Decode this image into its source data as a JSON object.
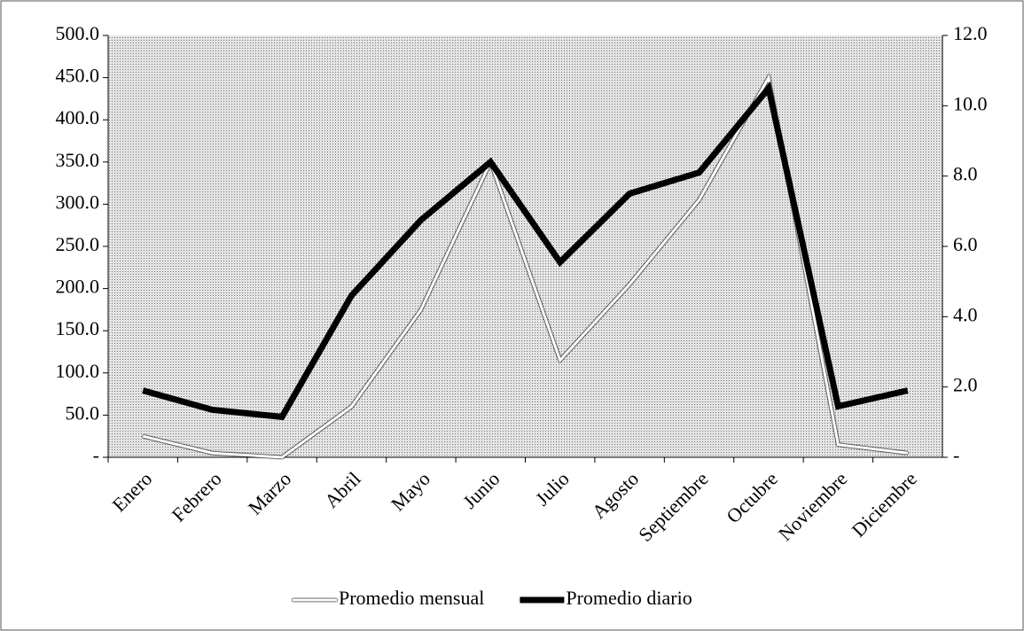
{
  "chart_data": {
    "type": "line",
    "categories": [
      "Enero",
      "Febrero",
      "Marzo",
      "Abril",
      "Mayo",
      "Junio",
      "Julio",
      "Agosto",
      "Septiembre",
      "Octubre",
      "Noviembre",
      "Diciembre"
    ],
    "series": [
      {
        "name": "Promedio mensual",
        "color": "#ffffff",
        "values": [
          25,
          5,
          0,
          60,
          175,
          350,
          115,
          205,
          305,
          450,
          15,
          5
        ]
      },
      {
        "name": "Promedio diario",
        "color": "#000000",
        "axis": "y2",
        "values": [
          1.9,
          1.35,
          1.15,
          4.6,
          6.75,
          8.4,
          5.55,
          7.5,
          8.1,
          10.5,
          1.45,
          1.9
        ]
      }
    ],
    "ylim": [
      0,
      500
    ],
    "yticks": [
      {
        "value": 0,
        "label": "-"
      },
      {
        "value": 50,
        "label": "50.0"
      },
      {
        "value": 100,
        "label": "100.0"
      },
      {
        "value": 150,
        "label": "150.0"
      },
      {
        "value": 200,
        "label": "200.0"
      },
      {
        "value": 250,
        "label": "250.0"
      },
      {
        "value": 300,
        "label": "300.0"
      },
      {
        "value": 350,
        "label": "350.0"
      },
      {
        "value": 400,
        "label": "400.0"
      },
      {
        "value": 450,
        "label": "450.0"
      },
      {
        "value": 500,
        "label": "500.0"
      }
    ],
    "y2lim": [
      0,
      12
    ],
    "y2ticks": [
      {
        "value": 0,
        "label": "-"
      },
      {
        "value": 2,
        "label": "2.0"
      },
      {
        "value": 4,
        "label": "4.0"
      },
      {
        "value": 6,
        "label": "6.0"
      },
      {
        "value": 8,
        "label": "8.0"
      },
      {
        "value": 10,
        "label": "10.0"
      },
      {
        "value": 12,
        "label": "12.0"
      }
    ],
    "legend": "bottom"
  }
}
